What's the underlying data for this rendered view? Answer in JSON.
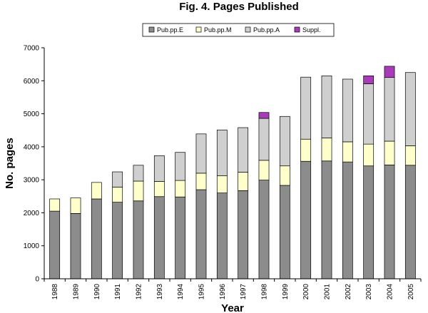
{
  "chart_data": {
    "type": "bar",
    "stacked": true,
    "title": "Fig. 4. Pages Published",
    "xlabel": "Year",
    "ylabel": "No. pages",
    "ylim": [
      0,
      7000
    ],
    "yticks": [
      "0",
      "1000",
      "2000",
      "3000",
      "4000",
      "5000",
      "6000",
      "7000"
    ],
    "legend_position": "top",
    "grid": false,
    "categories": [
      "1988",
      "1989",
      "1990",
      "1991",
      "1992",
      "1993",
      "1994",
      "1995",
      "1996",
      "1997",
      "1998",
      "1999",
      "2000",
      "2001",
      "2002",
      "2003",
      "2004",
      "2005"
    ],
    "series": [
      {
        "name": "Pub.pp.E",
        "color": "#8c8c8c",
        "values": [
          2050,
          1980,
          2420,
          2320,
          2360,
          2490,
          2480,
          2700,
          2600,
          2670,
          2990,
          2830,
          3560,
          3570,
          3540,
          3420,
          3450,
          3440
        ]
      },
      {
        "name": "Pub.pp.M",
        "color": "#ffffcc",
        "values": [
          370,
          470,
          500,
          460,
          600,
          460,
          500,
          500,
          520,
          560,
          600,
          590,
          670,
          700,
          610,
          660,
          720,
          590
        ]
      },
      {
        "name": "Pub.pp.A",
        "color": "#cfcfcf",
        "values": [
          0,
          0,
          0,
          460,
          480,
          780,
          850,
          1190,
          1390,
          1350,
          1270,
          1500,
          1880,
          1880,
          1900,
          1830,
          1930,
          2220
        ]
      },
      {
        "name": "Suppl.",
        "color": "#a83cb8",
        "values": [
          0,
          0,
          0,
          0,
          0,
          0,
          0,
          0,
          0,
          0,
          180,
          0,
          0,
          0,
          0,
          240,
          340,
          0
        ]
      }
    ]
  }
}
